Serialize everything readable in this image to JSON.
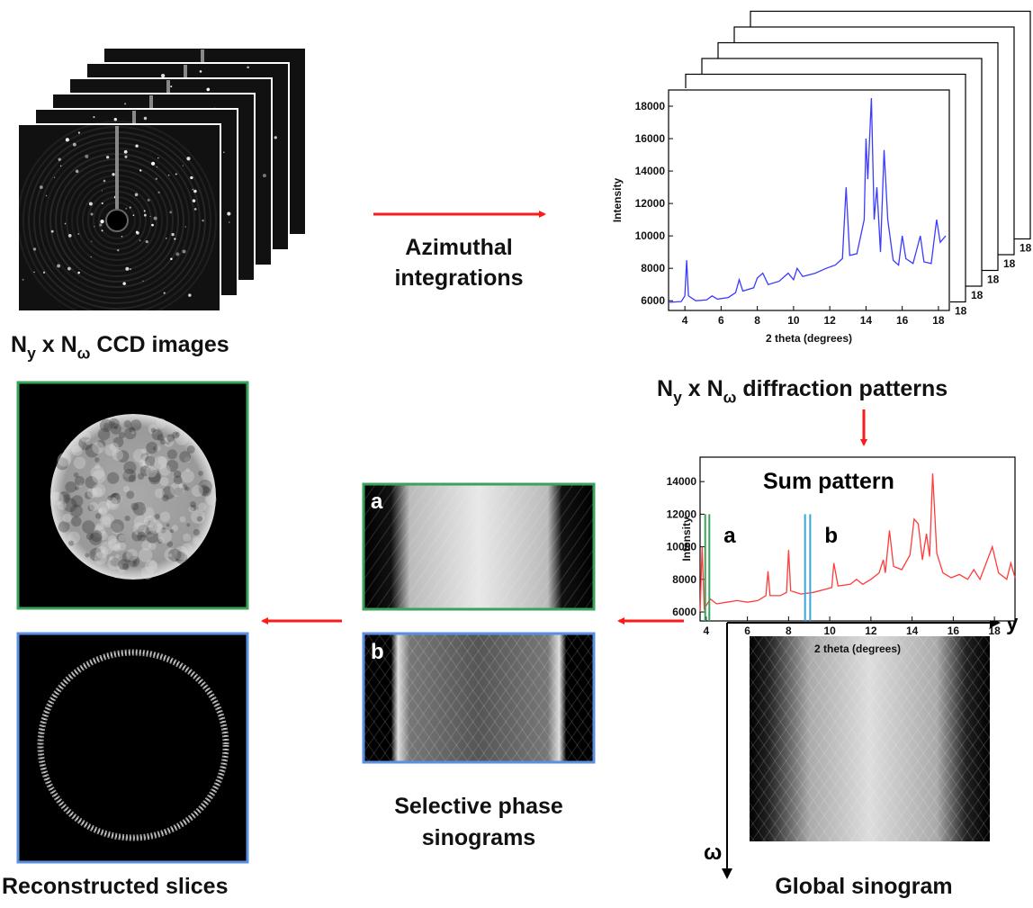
{
  "ccd_images": {
    "label": [
      "N",
      "y",
      " x N",
      "ω",
      " CCD images"
    ]
  },
  "integration_step": {
    "label": [
      "Azimuthal",
      "integrations"
    ]
  },
  "diffraction_patterns": {
    "label": [
      "N",
      "y",
      " x N",
      "ω",
      " diffraction patterns"
    ],
    "plot": {
      "type": "line",
      "color": "#3b3bff",
      "xlabel": "2 theta (degrees)",
      "ylabel": "Intensity",
      "xlim": [
        3.1,
        18.6
      ],
      "ylim": [
        5400,
        19000
      ],
      "xticks": [
        4,
        6,
        8,
        10,
        12,
        14,
        16,
        18
      ],
      "yticks": [
        6000,
        8000,
        10000,
        12000,
        14000,
        16000,
        18000
      ],
      "back_frame_tick": 18,
      "x": [
        3.1,
        3.8,
        4.0,
        4.1,
        4.2,
        4.6,
        5.2,
        5.5,
        5.8,
        6.4,
        6.8,
        7.0,
        7.2,
        7.8,
        8.0,
        8.3,
        8.6,
        9.2,
        9.7,
        10.0,
        10.2,
        10.5,
        11.2,
        11.8,
        12.3,
        12.7,
        12.9,
        13.1,
        13.5,
        13.9,
        14.0,
        14.1,
        14.3,
        14.45,
        14.6,
        14.8,
        15.0,
        15.2,
        15.5,
        15.8,
        16.0,
        16.2,
        16.6,
        17.0,
        17.2,
        17.6,
        17.9,
        18.1,
        18.4
      ],
      "values": [
        5900,
        5950,
        6300,
        8500,
        6300,
        6000,
        6050,
        6300,
        6100,
        6200,
        6500,
        7300,
        6600,
        6800,
        7400,
        7700,
        7000,
        7200,
        7700,
        7300,
        8000,
        7500,
        7700,
        8000,
        8200,
        8600,
        13000,
        8800,
        8900,
        11000,
        16000,
        13500,
        18500,
        11000,
        13000,
        9000,
        15300,
        11000,
        8500,
        8200,
        10000,
        8600,
        8300,
        10000,
        8400,
        8300,
        11000,
        9600,
        10000
      ]
    }
  },
  "sum_pattern": {
    "type": "line",
    "title": "Sum pattern",
    "color": "#ff3b3b",
    "xlabel": "2 theta (degrees)",
    "ylabel": "Intensity",
    "xlim": [
      3.7,
      19.0
    ],
    "ylim": [
      5450,
      15500
    ],
    "xticks": [
      4,
      6,
      8,
      10,
      12,
      14,
      16,
      18
    ],
    "yticks": [
      6000,
      8000,
      10000,
      12000,
      14000
    ],
    "x": [
      3.7,
      3.8,
      3.9,
      4.2,
      4.5,
      5.0,
      5.5,
      6.0,
      6.5,
      6.9,
      7.0,
      7.1,
      7.6,
      7.9,
      8.0,
      8.1,
      8.6,
      9.2,
      9.8,
      10.1,
      10.2,
      10.4,
      11.0,
      11.3,
      11.6,
      12.0,
      12.4,
      12.6,
      12.7,
      12.9,
      13.1,
      13.5,
      13.9,
      14.1,
      14.3,
      14.5,
      14.7,
      14.85,
      15.0,
      15.2,
      15.5,
      15.9,
      16.3,
      16.7,
      17.0,
      17.3,
      17.9,
      18.2,
      18.6,
      18.8,
      19.0
    ],
    "values": [
      6000,
      10000,
      6200,
      6800,
      6500,
      6600,
      6700,
      6600,
      6700,
      7000,
      8500,
      7000,
      7000,
      7200,
      9800,
      7300,
      7100,
      7200,
      7400,
      7500,
      9000,
      7600,
      7700,
      8000,
      7700,
      8000,
      8400,
      9200,
      8400,
      11000,
      8800,
      8600,
      9500,
      11700,
      11400,
      9200,
      10800,
      9400,
      14500,
      9600,
      8400,
      8100,
      8300,
      8000,
      8600,
      8000,
      10000,
      8400,
      8000,
      9000,
      8100
    ],
    "markers": [
      {
        "label": "a",
        "color": "#3aa35a",
        "x": [
          3.95,
          4.15
        ],
        "top": 12000
      },
      {
        "label": "b",
        "color": "#3aa6d8",
        "x": [
          8.8,
          9.05
        ],
        "top": 12000
      }
    ]
  },
  "selective_sinograms": {
    "panels": [
      "a",
      "b"
    ],
    "label": [
      "Selective phase",
      "sinograms"
    ]
  },
  "reconstructed_slices": {
    "label": "Reconstructed slices"
  },
  "global_sinogram": {
    "label": "Global sinogram",
    "axis_horizontal": "y",
    "axis_vertical": "ω"
  }
}
